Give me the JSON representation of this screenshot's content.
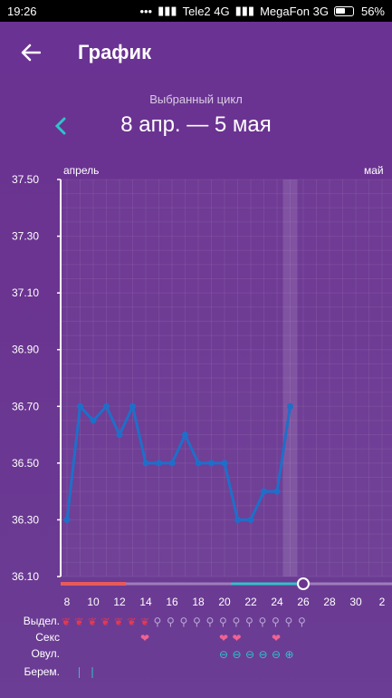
{
  "status_bar": {
    "time": "19:26",
    "carrier1": "Tele2 4G",
    "carrier2": "MegaFon 3G",
    "battery": "56%"
  },
  "toolbar": {
    "back_icon": "arrow-left-icon",
    "title": "График"
  },
  "cycle": {
    "label": "Выбранный цикл",
    "range": "8 апр. — 5 мая",
    "prev_icon": "chevron-left-icon"
  },
  "months": {
    "start": "апрель",
    "end": "май"
  },
  "colors": {
    "line": "#1e6fc9",
    "period": "#e85a5a",
    "fertile": "#2fc3c9",
    "heart": "#f06292"
  },
  "chart_data": {
    "type": "line",
    "x": [
      8,
      9,
      10,
      11,
      12,
      13,
      14,
      15,
      16,
      17,
      18,
      19,
      20,
      21,
      22,
      23,
      24,
      25
    ],
    "series": [
      {
        "values": [
          36.3,
          36.7,
          36.65,
          36.7,
          36.6,
          36.7,
          36.5,
          36.5,
          36.5,
          36.6,
          36.5,
          36.5,
          36.5,
          36.3,
          36.3,
          36.4,
          36.4,
          36.7
        ]
      }
    ],
    "yticks": [
      "37.50",
      "37.30",
      "37.10",
      "36.90",
      "36.70",
      "36.50",
      "36.30",
      "36.10"
    ],
    "xticks": [
      "8",
      "10",
      "12",
      "14",
      "16",
      "18",
      "20",
      "22",
      "24",
      "26",
      "28",
      "30",
      "2"
    ],
    "ylim": [
      36.1,
      37.5
    ],
    "highlight_day": 25,
    "current_day": 26
  },
  "legend": {
    "discharge": "Выдел.",
    "sex": "Секс",
    "ovulation": "Овул.",
    "pregnancy": "Берем."
  },
  "markers": {
    "discharge_drops": [
      8,
      9,
      10,
      11,
      12,
      13,
      14
    ],
    "discharge_other": [
      15,
      16,
      17,
      18,
      19,
      20,
      21,
      22,
      23,
      24,
      25,
      26
    ],
    "sex_days": [
      14,
      20,
      21,
      24
    ],
    "ovulation_minus": [
      20,
      21,
      22,
      23,
      24
    ],
    "ovulation_plus": [
      25
    ],
    "pregnancy_days": [
      9,
      10
    ]
  }
}
